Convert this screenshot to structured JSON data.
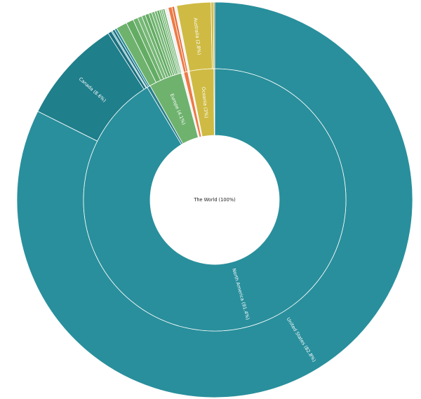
{
  "chart_data": {
    "type": "sunburst",
    "center": {
      "label": "The World (100%)"
    },
    "rings": [
      {
        "level": "continent",
        "segments": [
          {
            "label": "North America (91.4%)",
            "name": "North America",
            "value": 91.4,
            "color": "#298f9c"
          },
          {
            "label": "",
            "name": "",
            "value": 0.4,
            "color": "#2a7f8c"
          },
          {
            "label": "Europe (4.1%)",
            "name": "Europe",
            "value": 4.1,
            "color": "#6eb26e"
          },
          {
            "label": "",
            "name": "",
            "value": 0.3,
            "color": "#f3f3f3"
          },
          {
            "label": "",
            "name": "",
            "value": 0.5,
            "color": "#ed7a45"
          },
          {
            "label": "",
            "name": "",
            "value": 0.2,
            "color": "#f3f3f3"
          },
          {
            "label": "Oceania (3%)",
            "name": "Oceania",
            "value": 3.0,
            "color": "#cfbb43"
          },
          {
            "label": "",
            "name": "",
            "value": 0.1,
            "color": "#998a32"
          }
        ]
      },
      {
        "level": "country",
        "segments": [
          {
            "label": "United States (82.8%)",
            "name": "United States",
            "value": 82.8,
            "color": "#298f9c"
          },
          {
            "label": "Canada (8.6%)",
            "name": "Canada",
            "value": 8.6,
            "color": "#1f7f8b"
          },
          {
            "label": "",
            "name": "",
            "value": 0.3,
            "color": "#1b7080"
          },
          {
            "label": "",
            "name": "",
            "value": 0.1,
            "color": "#30a0ad"
          },
          {
            "label": "",
            "name": "",
            "value": 0.2,
            "color": "#1f6e7f"
          },
          {
            "label": "",
            "name": "",
            "value": 0.2,
            "color": "#2a8e9b"
          },
          {
            "label": "",
            "name": "",
            "value": 0.9,
            "color": "#6eb26e"
          },
          {
            "label": "",
            "name": "",
            "value": 0.6,
            "color": "#64ac64"
          },
          {
            "label": "",
            "name": "",
            "value": 0.4,
            "color": "#6eb26e"
          },
          {
            "label": "",
            "name": "",
            "value": 0.35,
            "color": "#78b878"
          },
          {
            "label": "",
            "name": "",
            "value": 0.3,
            "color": "#6eb26e"
          },
          {
            "label": "",
            "name": "",
            "value": 0.3,
            "color": "#64ac64"
          },
          {
            "label": "",
            "name": "",
            "value": 0.25,
            "color": "#6eb26e"
          },
          {
            "label": "",
            "name": "",
            "value": 0.25,
            "color": "#78b878"
          },
          {
            "label": "",
            "name": "",
            "value": 0.2,
            "color": "#6eb26e"
          },
          {
            "label": "",
            "name": "",
            "value": 0.2,
            "color": "#64ac64"
          },
          {
            "label": "",
            "name": "",
            "value": 0.15,
            "color": "#6eb26e"
          },
          {
            "label": "",
            "name": "",
            "value": 0.15,
            "color": "#78b878"
          },
          {
            "label": "",
            "name": "",
            "value": 0.15,
            "color": "#6eb26e"
          },
          {
            "label": "",
            "name": "",
            "value": 0.3,
            "color": "#f3f3f3"
          },
          {
            "label": "",
            "name": "",
            "value": 0.3,
            "color": "#ed7a45"
          },
          {
            "label": "",
            "name": "",
            "value": 0.2,
            "color": "#e86f3a"
          },
          {
            "label": "",
            "name": "",
            "value": 0.2,
            "color": "#f3f3f3"
          },
          {
            "label": "Australia (2.8%)",
            "name": "Australia",
            "value": 2.8,
            "color": "#cfbb43"
          },
          {
            "label": "",
            "name": "",
            "value": 0.2,
            "color": "#cfbb43"
          },
          {
            "label": "",
            "name": "",
            "value": 0.1,
            "color": "#998a32"
          }
        ]
      }
    ]
  }
}
